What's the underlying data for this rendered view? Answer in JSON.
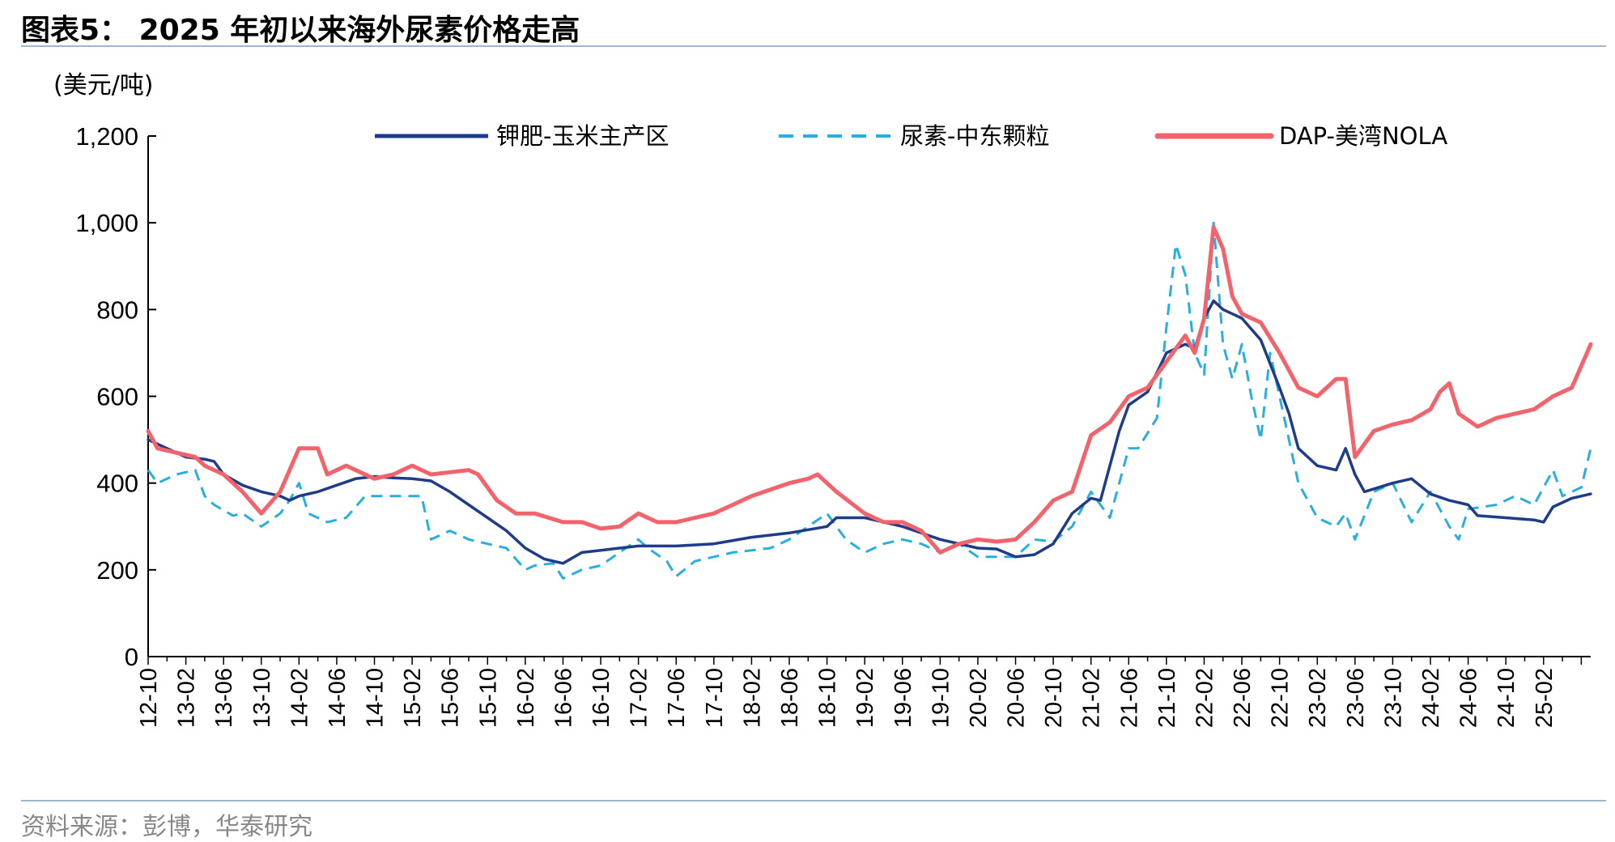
{
  "figure": {
    "title": "图表5：  2025 年初以来海外尿素价格走高",
    "unit": "(美元/吨)",
    "source": "资料来源：彭博，华泰研究"
  },
  "chart_data": {
    "type": "line",
    "ylim": [
      0,
      1200
    ],
    "yticks": [
      0,
      200,
      400,
      600,
      800,
      1000,
      1200
    ],
    "ytick_labels": [
      "0",
      "200",
      "400",
      "600",
      "800",
      "1,000",
      "1,200"
    ],
    "xlim": [
      "2012-10",
      "2025-07"
    ],
    "xtick_labels": [
      "12-10",
      "13-02",
      "13-06",
      "13-10",
      "14-02",
      "14-06",
      "14-10",
      "15-02",
      "15-06",
      "15-10",
      "16-02",
      "16-06",
      "16-10",
      "17-02",
      "17-06",
      "17-10",
      "18-02",
      "18-06",
      "18-10",
      "19-02",
      "19-06",
      "19-10",
      "20-02",
      "20-06",
      "20-10",
      "21-02",
      "21-06",
      "21-10",
      "22-02",
      "22-06",
      "22-10",
      "23-02",
      "23-06",
      "23-10",
      "24-02",
      "24-06",
      "24-10",
      "25-02"
    ],
    "legend_position": "top",
    "grid": false,
    "series": [
      {
        "name": "钾肥-玉米主产区",
        "color": "#1f3c88",
        "style": "solid",
        "points": [
          [
            "2012-10",
            500
          ],
          [
            "2012-12",
            480
          ],
          [
            "2013-02",
            460
          ],
          [
            "2013-04",
            455
          ],
          [
            "2013-05",
            450
          ],
          [
            "2013-06",
            420
          ],
          [
            "2013-08",
            395
          ],
          [
            "2013-10",
            380
          ],
          [
            "2013-12",
            370
          ],
          [
            "2014-01",
            360
          ],
          [
            "2014-02",
            370
          ],
          [
            "2014-04",
            380
          ],
          [
            "2014-06",
            395
          ],
          [
            "2014-08",
            410
          ],
          [
            "2014-10",
            415
          ],
          [
            "2014-12",
            412
          ],
          [
            "2015-02",
            410
          ],
          [
            "2015-04",
            405
          ],
          [
            "2015-06",
            380
          ],
          [
            "2015-08",
            350
          ],
          [
            "2015-10",
            320
          ],
          [
            "2015-12",
            290
          ],
          [
            "2016-02",
            250
          ],
          [
            "2016-04",
            225
          ],
          [
            "2016-06",
            215
          ],
          [
            "2016-08",
            240
          ],
          [
            "2016-10",
            245
          ],
          [
            "2016-12",
            250
          ],
          [
            "2017-02",
            255
          ],
          [
            "2017-06",
            255
          ],
          [
            "2017-10",
            260
          ],
          [
            "2018-02",
            275
          ],
          [
            "2018-06",
            285
          ],
          [
            "2018-10",
            300
          ],
          [
            "2018-11",
            320
          ],
          [
            "2019-02",
            320
          ],
          [
            "2019-06",
            300
          ],
          [
            "2019-10",
            270
          ],
          [
            "2020-02",
            250
          ],
          [
            "2020-04",
            248
          ],
          [
            "2020-06",
            230
          ],
          [
            "2020-08",
            235
          ],
          [
            "2020-10",
            260
          ],
          [
            "2020-12",
            330
          ],
          [
            "2021-02",
            365
          ],
          [
            "2021-03",
            360
          ],
          [
            "2021-05",
            520
          ],
          [
            "2021-06",
            580
          ],
          [
            "2021-08",
            610
          ],
          [
            "2021-10",
            700
          ],
          [
            "2021-12",
            720
          ],
          [
            "2022-01",
            710
          ],
          [
            "2022-02",
            780
          ],
          [
            "2022-03",
            820
          ],
          [
            "2022-04",
            800
          ],
          [
            "2022-06",
            780
          ],
          [
            "2022-08",
            730
          ],
          [
            "2022-10",
            620
          ],
          [
            "2022-11",
            560
          ],
          [
            "2022-12",
            480
          ],
          [
            "2023-02",
            440
          ],
          [
            "2023-04",
            430
          ],
          [
            "2023-05",
            480
          ],
          [
            "2023-06",
            420
          ],
          [
            "2023-07",
            380
          ],
          [
            "2023-10",
            400
          ],
          [
            "2023-12",
            410
          ],
          [
            "2024-02",
            375
          ],
          [
            "2024-04",
            360
          ],
          [
            "2024-06",
            350
          ],
          [
            "2024-07",
            325
          ],
          [
            "2024-10",
            320
          ],
          [
            "2025-01",
            315
          ],
          [
            "2025-02",
            310
          ],
          [
            "2025-03",
            345
          ],
          [
            "2025-05",
            365
          ],
          [
            "2025-07",
            375
          ]
        ]
      },
      {
        "name": "尿素-中东颗粒",
        "color": "#29aee0",
        "style": "dashed",
        "points": [
          [
            "2012-10",
            430
          ],
          [
            "2012-11",
            400
          ],
          [
            "2013-01",
            420
          ],
          [
            "2013-03",
            430
          ],
          [
            "2013-04",
            370
          ],
          [
            "2013-05",
            350
          ],
          [
            "2013-07",
            325
          ],
          [
            "2013-08",
            330
          ],
          [
            "2013-10",
            300
          ],
          [
            "2013-12",
            330
          ],
          [
            "2014-01",
            360
          ],
          [
            "2014-02",
            400
          ],
          [
            "2014-03",
            330
          ],
          [
            "2014-05",
            310
          ],
          [
            "2014-07",
            320
          ],
          [
            "2014-09",
            370
          ],
          [
            "2014-12",
            370
          ],
          [
            "2015-03",
            370
          ],
          [
            "2015-04",
            270
          ],
          [
            "2015-06",
            290
          ],
          [
            "2015-08",
            270
          ],
          [
            "2015-10",
            260
          ],
          [
            "2015-12",
            250
          ],
          [
            "2016-02",
            200
          ],
          [
            "2016-03",
            210
          ],
          [
            "2016-05",
            215
          ],
          [
            "2016-06",
            180
          ],
          [
            "2016-08",
            200
          ],
          [
            "2016-10",
            210
          ],
          [
            "2016-12",
            240
          ],
          [
            "2017-02",
            270
          ],
          [
            "2017-03",
            250
          ],
          [
            "2017-05",
            220
          ],
          [
            "2017-06",
            185
          ],
          [
            "2017-08",
            220
          ],
          [
            "2017-10",
            230
          ],
          [
            "2017-12",
            240
          ],
          [
            "2018-02",
            245
          ],
          [
            "2018-04",
            250
          ],
          [
            "2018-06",
            270
          ],
          [
            "2018-08",
            300
          ],
          [
            "2018-10",
            330
          ],
          [
            "2018-12",
            270
          ],
          [
            "2019-02",
            240
          ],
          [
            "2019-04",
            260
          ],
          [
            "2019-06",
            270
          ],
          [
            "2019-08",
            260
          ],
          [
            "2019-10",
            240
          ],
          [
            "2019-12",
            260
          ],
          [
            "2020-02",
            230
          ],
          [
            "2020-04",
            230
          ],
          [
            "2020-06",
            230
          ],
          [
            "2020-08",
            270
          ],
          [
            "2020-10",
            265
          ],
          [
            "2020-12",
            300
          ],
          [
            "2021-02",
            380
          ],
          [
            "2021-04",
            320
          ],
          [
            "2021-06",
            480
          ],
          [
            "2021-07",
            480
          ],
          [
            "2021-09",
            550
          ],
          [
            "2021-10",
            760
          ],
          [
            "2021-11",
            950
          ],
          [
            "2021-12",
            880
          ],
          [
            "2022-01",
            700
          ],
          [
            "2022-02",
            650
          ],
          [
            "2022-03",
            1000
          ],
          [
            "2022-04",
            720
          ],
          [
            "2022-05",
            640
          ],
          [
            "2022-06",
            720
          ],
          [
            "2022-07",
            600
          ],
          [
            "2022-08",
            500
          ],
          [
            "2022-09",
            700
          ],
          [
            "2022-10",
            600
          ],
          [
            "2022-12",
            400
          ],
          [
            "2023-02",
            320
          ],
          [
            "2023-04",
            300
          ],
          [
            "2023-05",
            330
          ],
          [
            "2023-06",
            270
          ],
          [
            "2023-08",
            380
          ],
          [
            "2023-10",
            400
          ],
          [
            "2023-12",
            310
          ],
          [
            "2024-02",
            380
          ],
          [
            "2024-04",
            300
          ],
          [
            "2024-05",
            270
          ],
          [
            "2024-06",
            340
          ],
          [
            "2024-09",
            350
          ],
          [
            "2024-11",
            370
          ],
          [
            "2025-01",
            350
          ],
          [
            "2025-03",
            430
          ],
          [
            "2025-04",
            370
          ],
          [
            "2025-06",
            390
          ],
          [
            "2025-07",
            480
          ]
        ]
      },
      {
        "name": "DAP-美湾NOLA",
        "color": "#f2636c",
        "style": "solid",
        "points": [
          [
            "2012-10",
            520
          ],
          [
            "2012-11",
            480
          ],
          [
            "2013-01",
            470
          ],
          [
            "2013-03",
            460
          ],
          [
            "2013-04",
            440
          ],
          [
            "2013-06",
            420
          ],
          [
            "2013-08",
            380
          ],
          [
            "2013-10",
            330
          ],
          [
            "2013-12",
            380
          ],
          [
            "2014-02",
            480
          ],
          [
            "2014-04",
            480
          ],
          [
            "2014-05",
            420
          ],
          [
            "2014-07",
            440
          ],
          [
            "2014-10",
            410
          ],
          [
            "2014-12",
            420
          ],
          [
            "2015-02",
            440
          ],
          [
            "2015-04",
            420
          ],
          [
            "2015-06",
            425
          ],
          [
            "2015-08",
            430
          ],
          [
            "2015-09",
            420
          ],
          [
            "2015-11",
            360
          ],
          [
            "2016-01",
            330
          ],
          [
            "2016-03",
            330
          ],
          [
            "2016-06",
            310
          ],
          [
            "2016-08",
            310
          ],
          [
            "2016-10",
            295
          ],
          [
            "2016-12",
            300
          ],
          [
            "2017-02",
            330
          ],
          [
            "2017-04",
            310
          ],
          [
            "2017-06",
            310
          ],
          [
            "2017-08",
            320
          ],
          [
            "2017-10",
            330
          ],
          [
            "2017-12",
            350
          ],
          [
            "2018-02",
            370
          ],
          [
            "2018-06",
            400
          ],
          [
            "2018-08",
            410
          ],
          [
            "2018-09",
            420
          ],
          [
            "2018-11",
            380
          ],
          [
            "2019-02",
            330
          ],
          [
            "2019-04",
            310
          ],
          [
            "2019-06",
            310
          ],
          [
            "2019-08",
            290
          ],
          [
            "2019-10",
            240
          ],
          [
            "2019-12",
            260
          ],
          [
            "2020-02",
            270
          ],
          [
            "2020-04",
            265
          ],
          [
            "2020-06",
            270
          ],
          [
            "2020-08",
            310
          ],
          [
            "2020-10",
            360
          ],
          [
            "2020-12",
            380
          ],
          [
            "2021-02",
            510
          ],
          [
            "2021-04",
            540
          ],
          [
            "2021-06",
            600
          ],
          [
            "2021-08",
            620
          ],
          [
            "2021-10",
            680
          ],
          [
            "2021-12",
            740
          ],
          [
            "2022-01",
            700
          ],
          [
            "2022-02",
            780
          ],
          [
            "2022-03",
            990
          ],
          [
            "2022-04",
            940
          ],
          [
            "2022-05",
            830
          ],
          [
            "2022-06",
            790
          ],
          [
            "2022-08",
            770
          ],
          [
            "2022-10",
            700
          ],
          [
            "2022-12",
            620
          ],
          [
            "2023-02",
            600
          ],
          [
            "2023-04",
            640
          ],
          [
            "2023-05",
            640
          ],
          [
            "2023-06",
            460
          ],
          [
            "2023-08",
            520
          ],
          [
            "2023-10",
            535
          ],
          [
            "2023-12",
            545
          ],
          [
            "2024-02",
            570
          ],
          [
            "2024-03",
            610
          ],
          [
            "2024-04",
            630
          ],
          [
            "2024-05",
            560
          ],
          [
            "2024-07",
            530
          ],
          [
            "2024-09",
            550
          ],
          [
            "2024-11",
            560
          ],
          [
            "2025-01",
            570
          ],
          [
            "2025-03",
            600
          ],
          [
            "2025-05",
            620
          ],
          [
            "2025-07",
            720
          ]
        ]
      }
    ]
  }
}
